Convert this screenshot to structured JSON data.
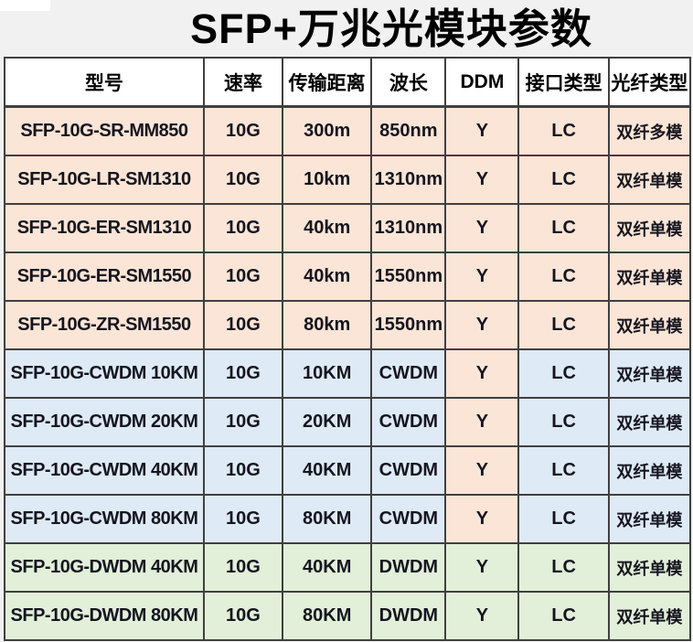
{
  "title": "SFP+万兆光模块参数",
  "colors": {
    "peach": "#fbe5d6",
    "blue": "#deeaf6",
    "green": "#e2efd9",
    "header_bg": "#ffffff",
    "border": "#404040",
    "page_bg": "#f1f1f1",
    "text": "#15151f"
  },
  "table": {
    "columns": [
      {
        "key": "model",
        "label": "型号"
      },
      {
        "key": "speed",
        "label": "速率"
      },
      {
        "key": "distance",
        "label": "传输距离"
      },
      {
        "key": "wavelength",
        "label": "波长"
      },
      {
        "key": "ddm",
        "label": "DDM"
      },
      {
        "key": "interface",
        "label": "接口类型"
      },
      {
        "key": "fiber",
        "label": "光纤类型"
      }
    ],
    "rows": [
      {
        "model": "SFP-10G-SR-MM850",
        "speed": "10G",
        "distance": "300m",
        "wavelength": "850nm",
        "ddm": "Y",
        "interface": "LC",
        "fiber": "双纤多模",
        "bg": "peach",
        "ddm_bg": "peach"
      },
      {
        "model": "SFP-10G-LR-SM1310",
        "speed": "10G",
        "distance": "10km",
        "wavelength": "1310nm",
        "ddm": "Y",
        "interface": "LC",
        "fiber": "双纤单模",
        "bg": "peach",
        "ddm_bg": "peach"
      },
      {
        "model": "SFP-10G-ER-SM1310",
        "speed": "10G",
        "distance": "40km",
        "wavelength": "1310nm",
        "ddm": "Y",
        "interface": "LC",
        "fiber": "双纤单模",
        "bg": "peach",
        "ddm_bg": "peach"
      },
      {
        "model": "SFP-10G-ER-SM1550",
        "speed": "10G",
        "distance": "40km",
        "wavelength": "1550nm",
        "ddm": "Y",
        "interface": "LC",
        "fiber": "双纤单模",
        "bg": "peach",
        "ddm_bg": "peach"
      },
      {
        "model": "SFP-10G-ZR-SM1550",
        "speed": "10G",
        "distance": "80km",
        "wavelength": "1550nm",
        "ddm": "Y",
        "interface": "LC",
        "fiber": "双纤单模",
        "bg": "peach",
        "ddm_bg": "peach"
      },
      {
        "model": "SFP-10G-CWDM 10KM",
        "speed": "10G",
        "distance": "10KM",
        "wavelength": "CWDM",
        "ddm": "Y",
        "interface": "LC",
        "fiber": "双纤单模",
        "bg": "blue",
        "ddm_bg": "peach"
      },
      {
        "model": "SFP-10G-CWDM 20KM",
        "speed": "10G",
        "distance": "20KM",
        "wavelength": "CWDM",
        "ddm": "Y",
        "interface": "LC",
        "fiber": "双纤单模",
        "bg": "blue",
        "ddm_bg": "peach"
      },
      {
        "model": "SFP-10G-CWDM 40KM",
        "speed": "10G",
        "distance": "40KM",
        "wavelength": "CWDM",
        "ddm": "Y",
        "interface": "LC",
        "fiber": "双纤单模",
        "bg": "blue",
        "ddm_bg": "peach"
      },
      {
        "model": "SFP-10G-CWDM 80KM",
        "speed": "10G",
        "distance": "80KM",
        "wavelength": "CWDM",
        "ddm": "Y",
        "interface": "LC",
        "fiber": "双纤单模",
        "bg": "blue",
        "ddm_bg": "peach"
      },
      {
        "model": "SFP-10G-DWDM 40KM",
        "speed": "10G",
        "distance": "40KM",
        "wavelength": "DWDM",
        "ddm": "Y",
        "interface": "LC",
        "fiber": "双纤单模",
        "bg": "green",
        "ddm_bg": "green"
      },
      {
        "model": "SFP-10G-DWDM 80KM",
        "speed": "10G",
        "distance": "80KM",
        "wavelength": "DWDM",
        "ddm": "Y",
        "interface": "LC",
        "fiber": "双纤单模",
        "bg": "green",
        "ddm_bg": "green"
      }
    ]
  }
}
